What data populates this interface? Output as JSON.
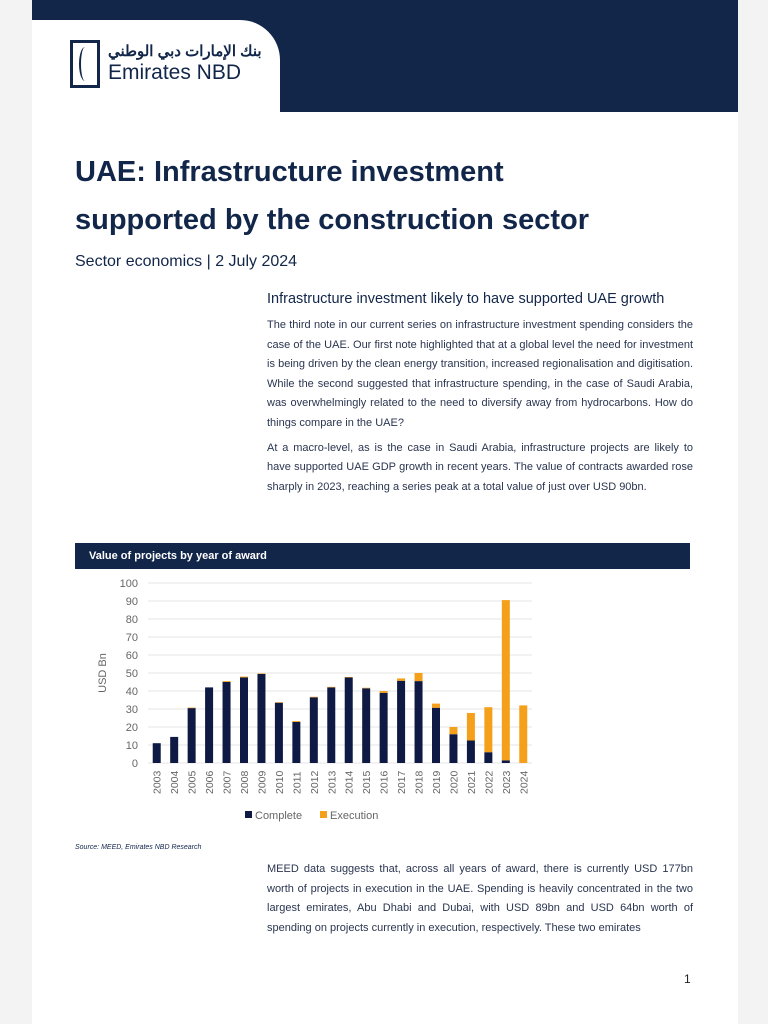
{
  "header": {
    "logo_arabic": "بنك الإمارات دبي الوطني",
    "logo_english": "Emirates NBD"
  },
  "title": "UAE: Infrastructure investment supported by the construction sector",
  "subtitle": "Sector economics | 2 July 2024",
  "section_heading": "Infrastructure investment likely to have supported UAE growth",
  "paragraphs": [
    "The third note in our current series on infrastructure investment spending considers the case of the UAE. Our first note highlighted that at a global level the need for investment is being driven by the clean energy transition, increased regionalisation and digitisation. While the second suggested that infrastructure spending, in the case of Saudi Arabia, was overwhelmingly related to the need to diversify away from hydrocarbons. How do things compare in the UAE?",
    "At a macro-level, as is the case in Saudi Arabia, infrastructure projects are likely to have supported UAE GDP growth in recent years. The value of contracts awarded rose sharply in 2023, reaching a series peak at a total value of just over USD 90bn.",
    "MEED data suggests that, across all years of award, there is currently USD 177bn worth of projects in execution in the UAE. Spending is heavily concentrated in the two largest emirates, Abu Dhabi and Dubai, with USD 89bn and USD 64bn worth of spending on projects currently in execution, respectively. These two emirates"
  ],
  "chart_title": "Value of projects by year of award",
  "chart_data": {
    "type": "bar",
    "stacked": true,
    "categories": [
      "2003",
      "2004",
      "2005",
      "2006",
      "2007",
      "2008",
      "2009",
      "2010",
      "2011",
      "2012",
      "2013",
      "2014",
      "2015",
      "2016",
      "2017",
      "2018",
      "2019",
      "2020",
      "2021",
      "2022",
      "2023",
      "2024"
    ],
    "series": [
      {
        "name": "Complete",
        "color": "#0e1a44",
        "values": [
          11,
          14.5,
          30.5,
          42,
          45,
          47.5,
          49.5,
          33.5,
          22.8,
          36.5,
          42,
          47.5,
          41.5,
          39,
          45.7,
          45.5,
          30.7,
          16,
          12.5,
          6,
          1.5,
          0
        ]
      },
      {
        "name": "Execution",
        "color": "#f5a01a",
        "values": [
          0,
          0,
          0.3,
          0,
          0.5,
          0.5,
          0.3,
          0.3,
          0.5,
          0.3,
          0.3,
          0.3,
          0.3,
          1,
          1.3,
          4.5,
          2.3,
          4,
          15.3,
          25,
          89,
          32
        ]
      }
    ],
    "ylabel": "USD Bn",
    "ylim": [
      0,
      100
    ],
    "yticks": [
      0,
      10,
      20,
      30,
      40,
      50,
      60,
      70,
      80,
      90,
      100
    ],
    "grid": true,
    "legend": "bottom"
  },
  "source": "Source: MEED, Emirates NBD Research",
  "page_number": "1"
}
